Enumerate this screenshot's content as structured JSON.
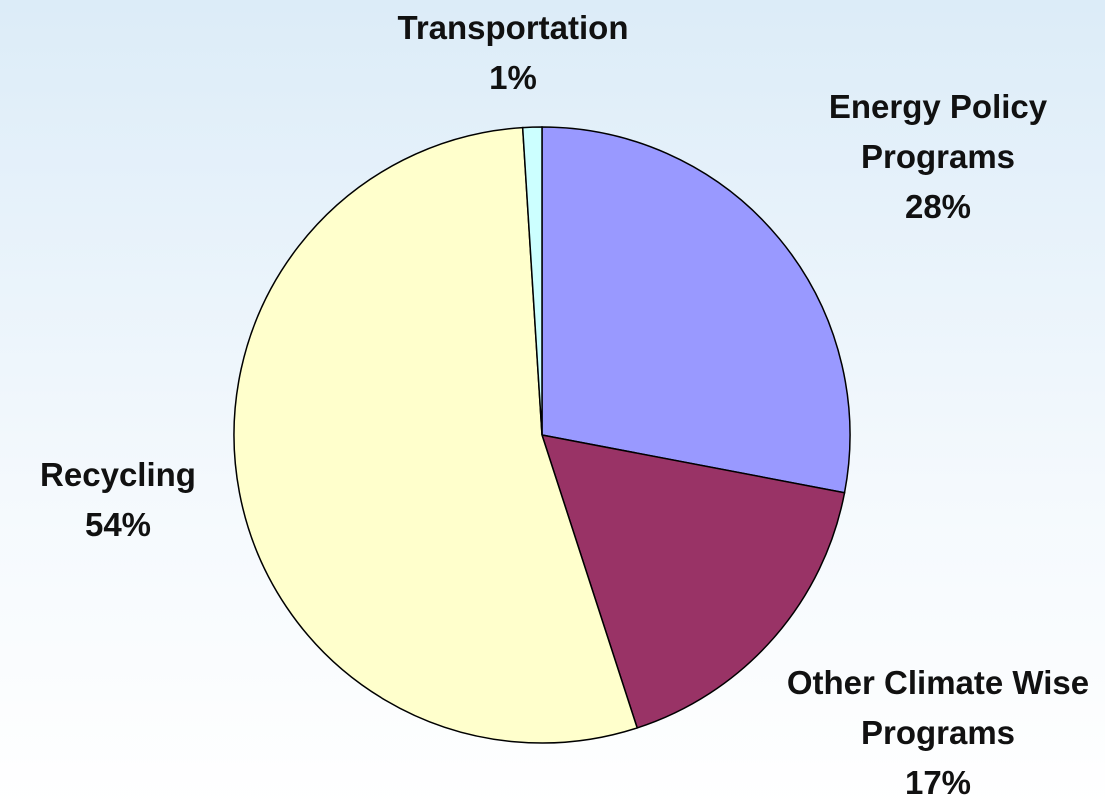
{
  "chart_data": {
    "type": "pie",
    "categories": [
      "Energy Policy Programs",
      "Other Climate Wise Programs",
      "Recycling",
      "Transportation"
    ],
    "values": [
      28,
      17,
      54,
      1
    ],
    "value_labels": [
      "28%",
      "17%",
      "54%",
      "1%"
    ],
    "colors": [
      "#9999ff",
      "#993366",
      "#ffffcc",
      "#ccffff"
    ]
  }
}
